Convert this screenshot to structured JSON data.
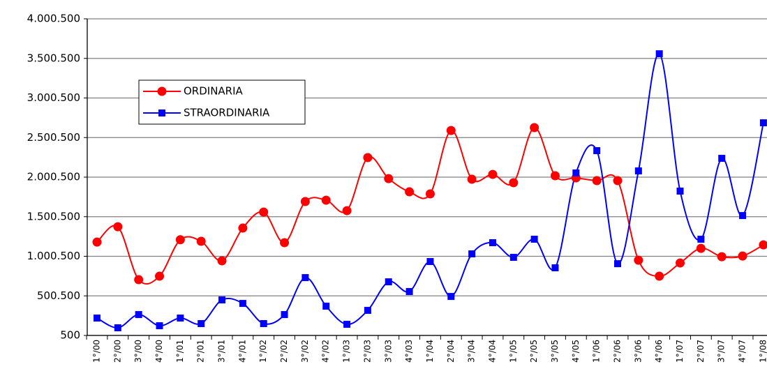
{
  "chart_data": {
    "type": "line",
    "categories": [
      "1°/00",
      "2°/00",
      "3°/00",
      "4°/00",
      "1°/01",
      "2°/01",
      "3°/01",
      "4°/01",
      "1°/02",
      "2°/02",
      "3°/02",
      "4°/02",
      "1°/03",
      "2°/03",
      "3°/03",
      "4°/03",
      "1°/04",
      "2°/04",
      "3°/04",
      "4°/04",
      "1°/05",
      "2°/05",
      "3°/05",
      "4°/05",
      "1°/06",
      "2°/06",
      "3°/06",
      "4°/06",
      "1°/07",
      "2°/07",
      "3°/07",
      "4°/07",
      "1°/08"
    ],
    "series": [
      {
        "name": "ORDINARIA",
        "color": "#ff0000",
        "marker": "circle",
        "values": [
          1180000,
          1374000,
          705000,
          749000,
          1210000,
          1190000,
          943000,
          1357000,
          1559000,
          1172000,
          1692000,
          1709000,
          1577000,
          2247000,
          1982000,
          1815000,
          1789000,
          2590000,
          1974000,
          2035000,
          1930000,
          2626000,
          2018000,
          1991000,
          1956000,
          1956000,
          951000,
          749000,
          916000,
          1101000,
          995000,
          1004000,
          1145000
        ]
      },
      {
        "name": "STRAORDINARIA",
        "color": "#0000ff",
        "marker": "square",
        "values": [
          220000,
          97000,
          264000,
          123000,
          220000,
          150000,
          449000,
          405000,
          150000,
          264000,
          731000,
          370000,
          141000,
          317000,
          678000,
          555000,
          934000,
          493000,
          1031000,
          1172000,
          987000,
          1216000,
          855000,
          2053000,
          2335000,
          907000,
          2079000,
          3559000,
          1824000,
          1216000,
          2238000,
          1515000,
          2687000
        ]
      }
    ],
    "ylim": [
      500,
      4000500
    ],
    "yticks": [
      {
        "value": 500,
        "label": "500"
      },
      {
        "value": 500500,
        "label": "500.500"
      },
      {
        "value": 1000500,
        "label": "1.000.500"
      },
      {
        "value": 1500500,
        "label": "1.500.500"
      },
      {
        "value": 2000500,
        "label": "2.000.500"
      },
      {
        "value": 2500500,
        "label": "2.500.500"
      },
      {
        "value": 3000500,
        "label": "3.000.500"
      },
      {
        "value": 3500500,
        "label": "3.500.500"
      },
      {
        "value": 4000500,
        "label": "4.000.500"
      }
    ],
    "grid": true
  }
}
